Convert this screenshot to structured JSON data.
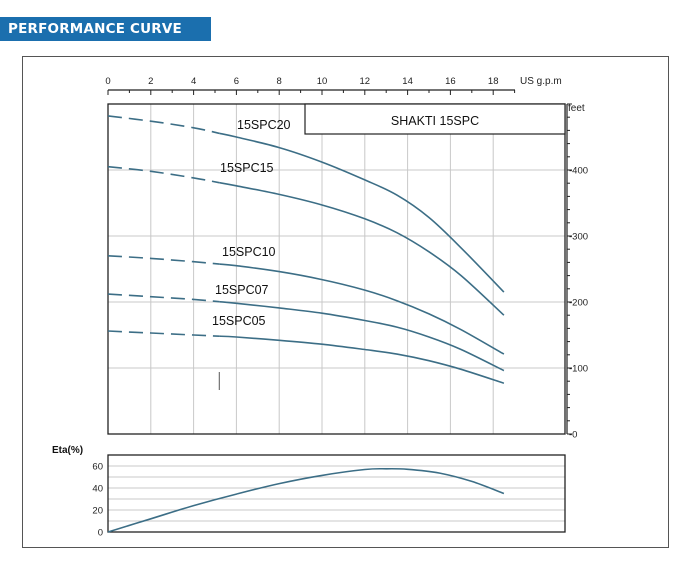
{
  "header": {
    "title": "PERFORMANCE CURVE"
  },
  "colors": {
    "header_bg": "#1b6fae",
    "curve": "#3c6e86",
    "grid": "#c8c8c8"
  },
  "chart_data": [
    {
      "type": "line",
      "title": "SHAKTI 15SPC",
      "xlabel": "US g.p.m",
      "ylabel": "feet",
      "xlim": [
        0,
        20
      ],
      "ylim": [
        0,
        500
      ],
      "x_ticks": [
        0,
        2,
        4,
        6,
        8,
        10,
        12,
        14,
        16,
        18
      ],
      "y_ticks": [
        0,
        100,
        200,
        300,
        400
      ],
      "grid": true,
      "series": [
        {
          "name": "15SPC20",
          "dashed_until": 5.2,
          "points": [
            [
              0,
              482
            ],
            [
              2,
              474
            ],
            [
              4,
              464
            ],
            [
              6,
              450
            ],
            [
              8,
              434
            ],
            [
              10,
              412
            ],
            [
              12,
              385
            ],
            [
              13.5,
              362
            ],
            [
              15,
              328
            ],
            [
              16.5,
              282
            ],
            [
              18.5,
              215
            ]
          ]
        },
        {
          "name": "15SPC15",
          "dashed_until": 5.2,
          "points": [
            [
              0,
              405
            ],
            [
              2,
              398
            ],
            [
              4,
              388
            ],
            [
              6,
              376
            ],
            [
              8,
              363
            ],
            [
              10,
              347
            ],
            [
              12,
              326
            ],
            [
              13.5,
              305
            ],
            [
              15,
              276
            ],
            [
              16.5,
              240
            ],
            [
              18.5,
              180
            ]
          ]
        },
        {
          "name": "15SPC10",
          "dashed_until": 5.2,
          "points": [
            [
              0,
              270
            ],
            [
              2,
              266
            ],
            [
              4,
              261
            ],
            [
              6,
              255
            ],
            [
              8,
              246
            ],
            [
              10,
              234
            ],
            [
              12,
              218
            ],
            [
              13.5,
              202
            ],
            [
              15,
              182
            ],
            [
              16.5,
              158
            ],
            [
              18.5,
              121
            ]
          ]
        },
        {
          "name": "15SPC07",
          "dashed_until": 5.2,
          "points": [
            [
              0,
              212
            ],
            [
              2,
              208
            ],
            [
              4,
              204
            ],
            [
              6,
              198
            ],
            [
              8,
              191
            ],
            [
              10,
              183
            ],
            [
              12,
              172
            ],
            [
              13.5,
              162
            ],
            [
              15,
              147
            ],
            [
              16.5,
              128
            ],
            [
              18.5,
              96
            ]
          ]
        },
        {
          "name": "15SPC05",
          "dashed_until": 5.2,
          "points": [
            [
              0,
              156
            ],
            [
              2,
              153
            ],
            [
              4,
              150
            ],
            [
              6,
              147
            ],
            [
              8,
              142
            ],
            [
              10,
              136
            ],
            [
              12,
              128
            ],
            [
              13.5,
              121
            ],
            [
              15,
              111
            ],
            [
              16.5,
              98
            ],
            [
              18.5,
              77
            ]
          ]
        }
      ]
    },
    {
      "type": "line",
      "title": "",
      "ylabel": "Eta(%)",
      "xlim": [
        0,
        20
      ],
      "ylim": [
        0,
        70
      ],
      "y_ticks": [
        0,
        20,
        40,
        60
      ],
      "grid": true,
      "series": [
        {
          "name": "",
          "points": [
            [
              0,
              0
            ],
            [
              2,
              12
            ],
            [
              4,
              24
            ],
            [
              6,
              34.5
            ],
            [
              8,
              44
            ],
            [
              10,
              51.5
            ],
            [
              12,
              56.8
            ],
            [
              13,
              57.5
            ],
            [
              14,
              57
            ],
            [
              15.5,
              53.5
            ],
            [
              17,
              46
            ],
            [
              18.5,
              35
            ]
          ]
        }
      ]
    }
  ]
}
